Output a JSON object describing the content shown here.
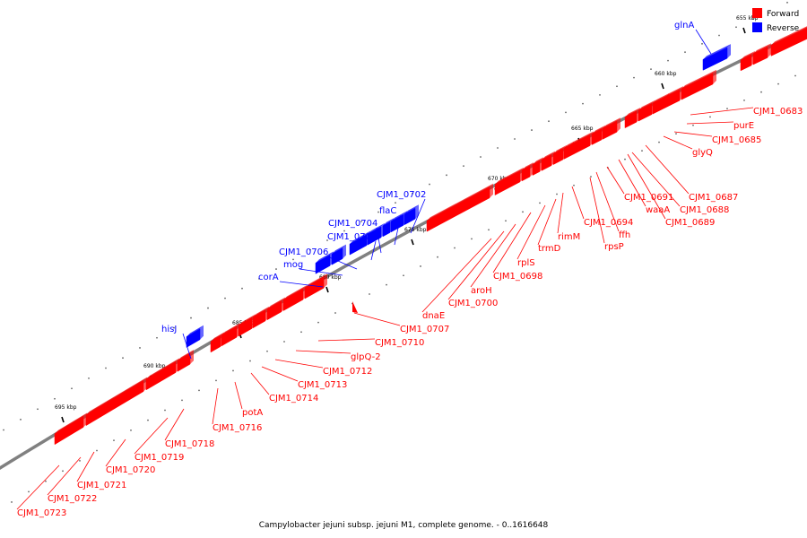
{
  "caption": "Campylobacter jejuni subsp. jejuni M1, complete genome. - 0..1616648",
  "legend": [
    {
      "label": "Forward",
      "color": "#ff0000"
    },
    {
      "label": "Reverse",
      "color": "#0000ff"
    }
  ],
  "colors": {
    "forward": "#ff0000",
    "reverse": "#0000ff",
    "backbone": "#808080"
  },
  "kbp_ticks": [
    "655 kbp",
    "660 kbp",
    "665 kbp",
    "670 kbp",
    "675 kbp",
    "680 kbp",
    "685 kbp",
    "690 kbp",
    "695 kbp"
  ],
  "forward_labels": [
    "CJM1_0683",
    "purE",
    "CJM1_0685",
    "glyQ",
    "CJM1_0687",
    "CJM1_0688",
    "CJM1_0689",
    "waaA",
    "CJM1_0691",
    "ffh",
    "rpsP",
    "CJM1_0694",
    "rimM",
    "trmD",
    "rplS",
    "CJM1_0698",
    "aroH",
    "CJM1_0700",
    "dnaE",
    "CJM1_0707",
    "CJM1_0710",
    "glpQ-2",
    "CJM1_0712",
    "CJM1_0713",
    "CJM1_0714",
    "potA",
    "CJM1_0716",
    "CJM1_0718",
    "CJM1_0719",
    "CJM1_0720",
    "CJM1_0721",
    "CJM1_0722",
    "CJM1_0723"
  ],
  "reverse_labels": [
    "glnA",
    "CJM1_0702",
    "flaC",
    "CJM1_0704",
    "CJM1_0705",
    "CJM1_0706",
    "mog",
    "corA",
    "hisJ"
  ]
}
